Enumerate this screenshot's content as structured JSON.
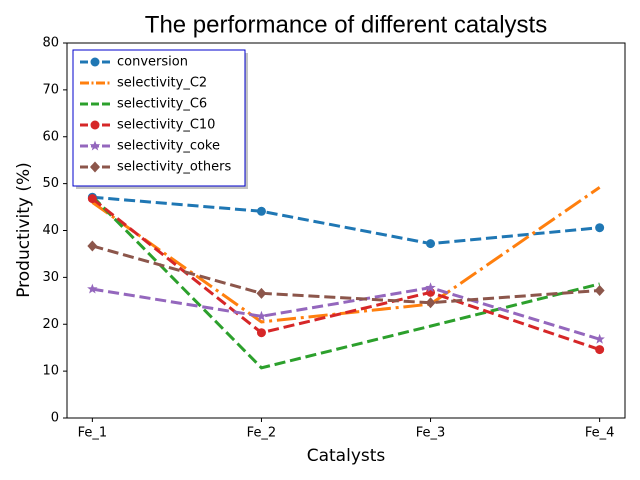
{
  "chart_data": {
    "type": "line",
    "title": "The performance of different catalysts",
    "x_label": "Catalysts",
    "y_label": "Productivity (%)",
    "categories": [
      "Fe_1",
      "Fe_2",
      "Fe_3",
      "Fe_4"
    ],
    "ylim": [
      0,
      80
    ],
    "yticks": [
      0,
      10,
      20,
      30,
      40,
      50,
      60,
      70,
      80
    ],
    "legend": "upper left",
    "series": [
      {
        "name": "conversion",
        "color": "#1f77b4",
        "linestyle": "dashed",
        "marker": "circle",
        "values": [
          47.1,
          44.1,
          37.2,
          40.6
        ]
      },
      {
        "name": "selectivity_C2",
        "color": "#ff7f0e",
        "linestyle": "dashdot",
        "marker": "none",
        "values": [
          46.0,
          20.5,
          24.3,
          49.2
        ]
      },
      {
        "name": "selectivity_C6",
        "color": "#2ca02c",
        "linestyle": "dashed",
        "marker": "none",
        "values": [
          47.3,
          10.7,
          19.6,
          28.6
        ]
      },
      {
        "name": "selectivity_C10",
        "color": "#d62728",
        "linestyle": "dashed",
        "marker": "circle",
        "values": [
          46.8,
          18.2,
          26.8,
          14.6
        ]
      },
      {
        "name": "selectivity_coke",
        "color": "#9467bd",
        "linestyle": "dashed",
        "marker": "star",
        "values": [
          27.5,
          21.7,
          27.8,
          16.8
        ]
      },
      {
        "name": "selectivity_others",
        "color": "#8c564b",
        "linestyle": "dashed",
        "marker": "diamond",
        "values": [
          36.7,
          26.6,
          24.6,
          27.2
        ]
      }
    ]
  }
}
